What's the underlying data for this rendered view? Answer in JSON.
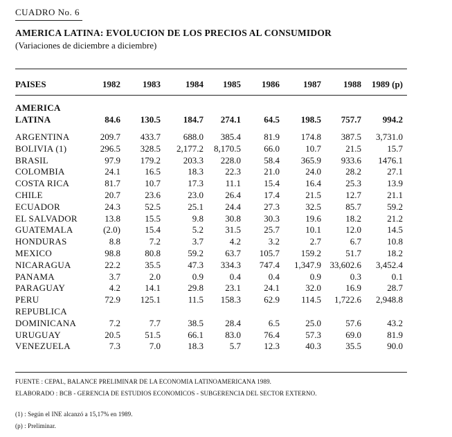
{
  "header": {
    "cuadro": "CUADRO  No. 6"
  },
  "title": "AMERICA LATINA: EVOLUCION DE LOS PRECIOS AL CONSUMIDOR",
  "subtitle": "(Variaciones de diciembre a diciembre)",
  "columns": {
    "first": "PAISES",
    "years": [
      "1982",
      "1983",
      "1984",
      "1985",
      "1986",
      "1987",
      "1988",
      "1989 (p)"
    ]
  },
  "america_latina": {
    "label_line1": "AMERICA",
    "label_line2": "LATINA",
    "values": [
      "84.6",
      "130.5",
      "184.7",
      "274.1",
      "64.5",
      "198.5",
      "757.7",
      "994.2"
    ]
  },
  "rows": [
    {
      "label": "ARGENTINA",
      "values": [
        "209.7",
        "433.7",
        "688.0",
        "385.4",
        "81.9",
        "174.8",
        "387.5",
        "3,731.0"
      ]
    },
    {
      "label": "BOLIVIA (1)",
      "values": [
        "296.5",
        "328.5",
        "2,177.2",
        "8,170.5",
        "66.0",
        "10.7",
        "21.5",
        "15.7"
      ]
    },
    {
      "label": "BRASIL",
      "values": [
        "97.9",
        "179.2",
        "203.3",
        "228.0",
        "58.4",
        "365.9",
        "933.6",
        "1476.1"
      ]
    },
    {
      "label": "COLOMBIA",
      "values": [
        "24.1",
        "16.5",
        "18.3",
        "22.3",
        "21.0",
        "24.0",
        "28.2",
        "27.1"
      ]
    },
    {
      "label": "COSTA RICA",
      "values": [
        "81.7",
        "10.7",
        "17.3",
        "11.1",
        "15.4",
        "16.4",
        "25.3",
        "13.9"
      ]
    },
    {
      "label": "CHILE",
      "values": [
        "20.7",
        "23.6",
        "23.0",
        "26.4",
        "17.4",
        "21.5",
        "12.7",
        "21.1"
      ]
    },
    {
      "label": "ECUADOR",
      "values": [
        "24.3",
        "52.5",
        "25.1",
        "24.4",
        "27.3",
        "32.5",
        "85.7",
        "59.2"
      ]
    },
    {
      "label": "EL SALVADOR",
      "values": [
        "13.8",
        "15.5",
        "9.8",
        "30.8",
        "30.3",
        "19.6",
        "18.2",
        "21.2"
      ]
    },
    {
      "label": "GUATEMALA",
      "values": [
        "(2.0)",
        "15.4",
        "5.2",
        "31.5",
        "25.7",
        "10.1",
        "12.0",
        "14.5"
      ]
    },
    {
      "label": "HONDURAS",
      "values": [
        "8.8",
        "7.2",
        "3.7",
        "4.2",
        "3.2",
        "2.7",
        "6.7",
        "10.8"
      ]
    },
    {
      "label": "MEXICO",
      "values": [
        "98.8",
        "80.8",
        "59.2",
        "63.7",
        "105.7",
        "159.2",
        "51.7",
        "18.2"
      ]
    },
    {
      "label": "NICARAGUA",
      "values": [
        "22.2",
        "35.5",
        "47.3",
        "334.3",
        "747.4",
        "1,347.9",
        "33,602.6",
        "3,452.4"
      ]
    },
    {
      "label": "PANAMA",
      "values": [
        "3.7",
        "2.0",
        "0.9",
        "0.4",
        "0.4",
        "0.9",
        "0.3",
        "0.1"
      ]
    },
    {
      "label": "PARAGUAY",
      "values": [
        "4.2",
        "14.1",
        "29.8",
        "23.1",
        "24.1",
        "32.0",
        "16.9",
        "28.7"
      ]
    },
    {
      "label": "PERU",
      "values": [
        "72.9",
        "125.1",
        "11.5",
        "158.3",
        "62.9",
        "114.5",
        "1,722.6",
        "2,948.8"
      ]
    },
    {
      "label": "REPUBLICA",
      "values": []
    },
    {
      "label": "DOMINICANA",
      "values": [
        "7.2",
        "7.7",
        "38.5",
        "28.4",
        "6.5",
        "25.0",
        "57.6",
        "43.2"
      ]
    },
    {
      "label": "URUGUAY",
      "values": [
        "20.5",
        "51.5",
        "66.1",
        "83.0",
        "76.4",
        "57.3",
        "69.0",
        "81.9"
      ]
    },
    {
      "label": "VENEZUELA",
      "values": [
        "7.3",
        "7.0",
        "18.3",
        "5.7",
        "12.3",
        "40.3",
        "35.5",
        "90.0"
      ]
    }
  ],
  "notes": {
    "fuente": "FUENTE :  CEPAL, BALANCE PRELIMINAR DE LA ECONOMIA LATINOAMERICANA 1989.",
    "elaborado": "ELABORADO :  BCB - GERENCIA DE ESTUDIOS ECONOMICOS - SUBGERENCIA DEL SECTOR EXTERNO.",
    "note1": "(1) : Según el INE alcanzó a 15,17% en 1989.",
    "notep": "(p) : Preliminar."
  }
}
